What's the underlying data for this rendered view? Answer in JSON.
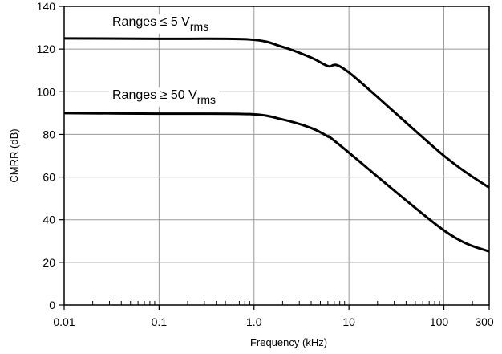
{
  "chart_data": {
    "type": "line",
    "title": "",
    "xlabel": "Frequency (kHz)",
    "ylabel": "CMRR (dB)",
    "xscale": "log",
    "xlim": [
      0.01,
      300
    ],
    "ylim": [
      0,
      140
    ],
    "grid": true,
    "legend": "none",
    "xticks": [
      {
        "value": 0.01,
        "label": "0.01"
      },
      {
        "value": 0.1,
        "label": "0.1"
      },
      {
        "value": 1,
        "label": "1.0"
      },
      {
        "value": 10,
        "label": "10"
      },
      {
        "value": 100,
        "label": "100"
      },
      {
        "value": 300,
        "label": "300"
      }
    ],
    "yticks": [
      {
        "value": 0,
        "label": "0"
      },
      {
        "value": 20,
        "label": "20"
      },
      {
        "value": 40,
        "label": "40"
      },
      {
        "value": 60,
        "label": "60"
      },
      {
        "value": 80,
        "label": "80"
      },
      {
        "value": 100,
        "label": "100"
      },
      {
        "value": 120,
        "label": "120"
      },
      {
        "value": 140,
        "label": "140"
      }
    ],
    "series": [
      {
        "label_main": "Ranges ≤ 5 V",
        "label_sub": "rms",
        "x": [
          0.01,
          0.1,
          0.9,
          2,
          4,
          6,
          10,
          100,
          300
        ],
        "y": [
          125,
          124.8,
          124.5,
          121,
          116,
          112,
          109,
          70,
          55
        ]
      },
      {
        "label_main": "Ranges ≥ 50 V",
        "label_sub": "rms",
        "x": [
          0.01,
          0.1,
          0.9,
          2,
          4,
          6,
          8,
          100,
          300
        ],
        "y": [
          90,
          89.7,
          89.5,
          87,
          83,
          79,
          75,
          35,
          25
        ]
      }
    ],
    "line_color": "#000000",
    "grid_color": "#9a9a9a"
  }
}
